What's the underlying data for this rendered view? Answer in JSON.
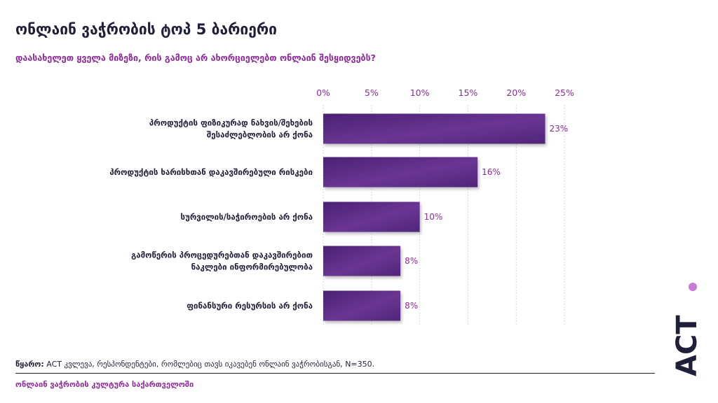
{
  "header": {
    "title": "ონლაინ ვაჭრობის ტოპ 5 ბარიერი",
    "subtitle": "დაასახელეთ ყველა მიზეზი, რის გამოც არ ახორციელებთ ონლაინ შესყიდვებს?"
  },
  "chart_data": {
    "type": "bar",
    "orientation": "horizontal",
    "categories": [
      [
        "პროდუქტის ფიზიკურად ნახვის/შეხების",
        "შესაძლებლობის არ ქონა"
      ],
      [
        "პროდუქტის ხარისხთან დაკავშირებული რისკები"
      ],
      [
        "სურვილის/საჭიროების არ ქონა"
      ],
      [
        "გამოწერის პროცედურებთან დაკავშირებით",
        "ნაკლები ინფორმირებულობა"
      ],
      [
        "ფინანსური რესურსის არ ქონა"
      ]
    ],
    "values": [
      23,
      16,
      10,
      8,
      8
    ],
    "value_labels": [
      "23%",
      "16%",
      "10%",
      "8%",
      "8%"
    ],
    "xlim": [
      0,
      25
    ],
    "ticks": [
      0,
      5,
      10,
      15,
      20,
      25
    ],
    "tick_labels": [
      "0%",
      "5%",
      "10%",
      "15%",
      "20%",
      "25%"
    ],
    "grid": true,
    "bar_color": "#5b2a86"
  },
  "source": {
    "label": "წყარო:",
    "text": " ACT კვლევა, რესპონდენტები, რომლებიც თავს იკავებენ ონლაინ ვაჭრობისგან, N=350."
  },
  "footer": {
    "text": "ონლაინ ვაჭრობის კულტურა საქართველოში"
  },
  "logo": {
    "text": "ACT",
    "color": "#1f1f3a",
    "dot_color": "#c77ad6"
  }
}
